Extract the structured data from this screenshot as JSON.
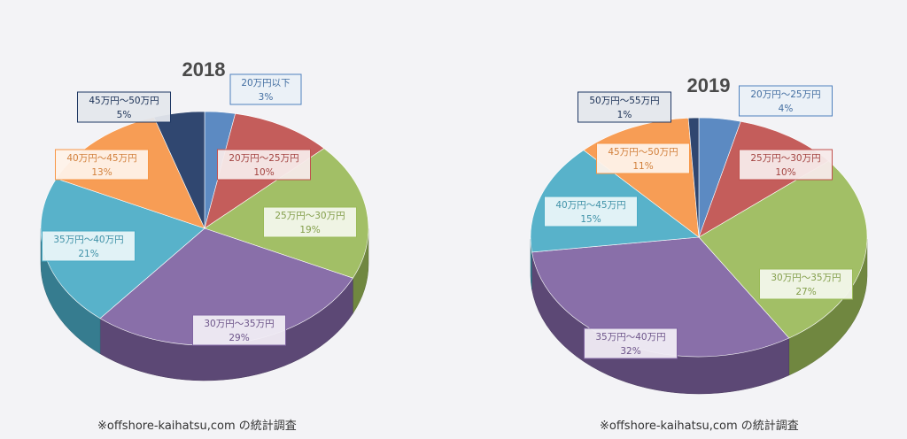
{
  "colors": {
    "blue": "#4f81bd",
    "red": "#c0504d",
    "green": "#9bbb59",
    "purple": "#8064a2",
    "teal": "#4bacc6",
    "orange": "#f79646",
    "navy": "#1f3864"
  },
  "chart_data": [
    {
      "type": "pie",
      "title": "2018",
      "source": "※offshore-kaihatsu,com の統計調査",
      "slices": [
        {
          "label": "20万円以下",
          "value": 3,
          "value_label": "3%",
          "color": "blue"
        },
        {
          "label": "20万円～25万円",
          "value": 10,
          "value_label": "10%",
          "color": "red"
        },
        {
          "label": "25万円～30万円",
          "value": 19,
          "value_label": "19%",
          "color": "green"
        },
        {
          "label": "30万円～35万円",
          "value": 29,
          "value_label": "29%",
          "color": "purple"
        },
        {
          "label": "35万円～40万円",
          "value": 21,
          "value_label": "21%",
          "color": "teal"
        },
        {
          "label": "40万円～45万円",
          "value": 13,
          "value_label": "13%",
          "color": "orange"
        },
        {
          "label": "45万円～50万円",
          "value": 5,
          "value_label": "5%",
          "color": "navy"
        }
      ]
    },
    {
      "type": "pie",
      "title": "2019",
      "source": "※offshore-kaihatsu,com の統計調査",
      "slices": [
        {
          "label": "20万円～25万円",
          "value": 4,
          "value_label": "4%",
          "color": "blue"
        },
        {
          "label": "25万円～30万円",
          "value": 10,
          "value_label": "10%",
          "color": "red"
        },
        {
          "label": "30万円～35万円",
          "value": 27,
          "value_label": "27%",
          "color": "green"
        },
        {
          "label": "35万円～40万円",
          "value": 32,
          "value_label": "32%",
          "color": "purple"
        },
        {
          "label": "40万円～45万円",
          "value": 15,
          "value_label": "15%",
          "color": "teal"
        },
        {
          "label": "45万円～50万円",
          "value": 11,
          "value_label": "11%",
          "color": "orange"
        },
        {
          "label": "50万円～55万円",
          "value": 1,
          "value_label": "1%",
          "color": "navy"
        }
      ]
    }
  ]
}
